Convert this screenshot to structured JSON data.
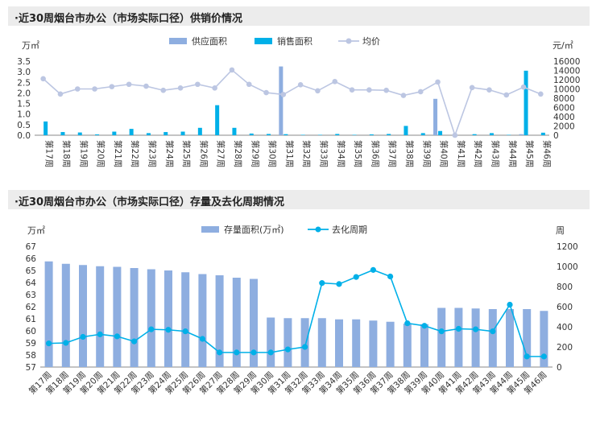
{
  "chart_data": [
    {
      "type": "bar+line",
      "title": "·近30周烟台市办公（市场实际口径）供销价情况",
      "left_unit": "万㎡",
      "right_unit": "元/㎡",
      "ylim_left": [
        0,
        3.5
      ],
      "yticks_left": [
        "0.0",
        "0.5",
        "1.0",
        "1.5",
        "2.0",
        "2.5",
        "3.0",
        "3.5"
      ],
      "ylim_right": [
        0,
        16000
      ],
      "yticks_right": [
        "0",
        "2000",
        "4000",
        "6000",
        "8000",
        "10000",
        "12000",
        "14000",
        "16000"
      ],
      "legend_position": "top",
      "categories": [
        "第17周",
        "第18周",
        "第19周",
        "第20周",
        "第21周",
        "第22周",
        "第23周",
        "第24周",
        "第25周",
        "第26周",
        "第27周",
        "第28周",
        "第29周",
        "第30周",
        "第31周",
        "第32周",
        "第33周",
        "第34周",
        "第35周",
        "第36周",
        "第37周",
        "第38周",
        "第39周",
        "第40周",
        "第41周",
        "第42周",
        "第43周",
        "第44周",
        "第45周",
        "第46周"
      ],
      "series": [
        {
          "name": "供应面积",
          "type": "bar",
          "axis": "left",
          "color": "#8eaee0",
          "values": [
            0,
            0,
            0,
            0,
            0,
            0,
            0,
            0,
            0,
            0,
            0,
            0,
            0,
            0,
            3.25,
            0,
            0,
            0,
            0,
            0,
            0,
            0,
            0,
            1.72,
            0,
            0,
            0,
            0,
            0.05,
            0
          ]
        },
        {
          "name": "销售面积",
          "type": "bar",
          "axis": "left",
          "color": "#00b0e8",
          "values": [
            0.65,
            0.15,
            0.13,
            0.04,
            0.17,
            0.3,
            0.1,
            0.15,
            0.17,
            0.35,
            1.42,
            0.35,
            0.08,
            0.06,
            0.05,
            0.02,
            0.02,
            0.06,
            0.02,
            0.04,
            0.06,
            0.44,
            0.1,
            0.2,
            0,
            0.05,
            0.1,
            0.02,
            3.05,
            0.12
          ]
        },
        {
          "name": "均价",
          "type": "line",
          "axis": "right",
          "color": "#bcc6e2",
          "values": [
            12200,
            8900,
            10000,
            10000,
            10500,
            11000,
            10600,
            9700,
            10200,
            11000,
            10200,
            14100,
            11000,
            9200,
            8800,
            10900,
            9600,
            11600,
            9800,
            9800,
            9700,
            8600,
            9400,
            11500,
            0,
            10300,
            9800,
            8700,
            10400,
            8900
          ]
        }
      ]
    },
    {
      "type": "bar+line",
      "title": "·近30周烟台市办公（市场实际口径）存量及去化周期情况",
      "left_unit": "万㎡",
      "right_unit": "周",
      "ylim_left": [
        57,
        67
      ],
      "yticks_left": [
        "57",
        "58",
        "59",
        "60",
        "61",
        "62",
        "63",
        "64",
        "65",
        "66",
        "67"
      ],
      "ylim_right": [
        0,
        1200
      ],
      "yticks_right": [
        "0",
        "200",
        "400",
        "600",
        "800",
        "1000",
        "1200"
      ],
      "legend_position": "top",
      "categories": [
        "第17周",
        "第18周",
        "第19周",
        "第20周",
        "第21周",
        "第22周",
        "第23周",
        "第24周",
        "第25周",
        "第26周",
        "第27周",
        "第28周",
        "第29周",
        "第30周",
        "第31周",
        "第32周",
        "第33周",
        "第34周",
        "第35周",
        "第36周",
        "第37周",
        "第38周",
        "第39周",
        "第40周",
        "第41周",
        "第42周",
        "第43周",
        "第44周",
        "第45周",
        "第46周"
      ],
      "series": [
        {
          "name": "存量面积(万㎡)",
          "type": "bar",
          "axis": "left",
          "color": "#8eaee0",
          "values": [
            65.75,
            65.55,
            65.45,
            65.35,
            65.3,
            65.2,
            65.1,
            65.0,
            64.85,
            64.7,
            64.6,
            64.4,
            64.3,
            61.1,
            61.05,
            61.05,
            61.05,
            60.95,
            60.95,
            60.85,
            60.75,
            60.6,
            60.55,
            61.9,
            61.9,
            61.85,
            61.8,
            61.8,
            61.8,
            61.65
          ]
        },
        {
          "name": "去化周期",
          "type": "line",
          "axis": "right",
          "color": "#00b0e8",
          "values": [
            235,
            240,
            300,
            325,
            305,
            255,
            375,
            370,
            355,
            280,
            145,
            145,
            145,
            145,
            175,
            200,
            835,
            825,
            895,
            965,
            900,
            435,
            410,
            355,
            380,
            375,
            355,
            620,
            105,
            105
          ]
        }
      ]
    }
  ]
}
